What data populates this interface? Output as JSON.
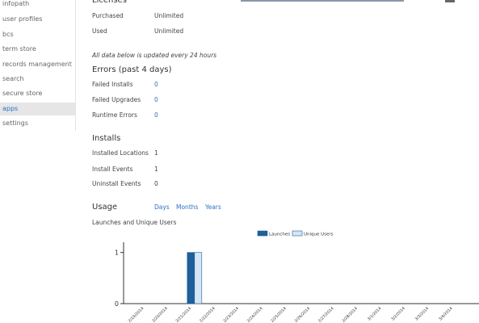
{
  "nav": {
    "items": [
      "infopath",
      "user profiles",
      "bcs",
      "term store",
      "records management",
      "search",
      "secure store",
      "apps",
      "settings"
    ],
    "selected": 7
  },
  "licenses": {
    "title": "Licenses",
    "rows": [
      [
        "Purchased",
        "Unlimited"
      ],
      [
        "Used",
        "Unlimited"
      ]
    ]
  },
  "note": "All data below is updated every 24 hours",
  "errors": {
    "title": "Errors (past 4 days)",
    "rows": [
      [
        "Failed Installs",
        0
      ],
      [
        "Failed Upgrades",
        0
      ],
      [
        "Runtime Errors",
        0
      ]
    ]
  },
  "installs": {
    "title": "Installs",
    "rows": [
      [
        "Installed Locations",
        1
      ],
      [
        "Install Events",
        1
      ],
      [
        "Uninstall Events",
        0
      ]
    ]
  },
  "usage": {
    "title": "Usage",
    "links": [
      "Days",
      "Months",
      "Years"
    ]
  },
  "chart_data": {
    "type": "bar",
    "title": "Launches and Unique Users",
    "categories": [
      "2/19/2014",
      "2/20/2014",
      "2/21/2014",
      "2/22/2014",
      "2/23/2014",
      "2/24/2014",
      "2/25/2014",
      "2/26/2014",
      "2/27/2014",
      "2/28/2014",
      "3/1/2014",
      "3/2/2014",
      "3/3/2014",
      "3/4/2014"
    ],
    "series": [
      {
        "name": "Launches",
        "color": "#1f5f9a",
        "values": [
          0,
          0,
          1,
          0,
          0,
          0,
          0,
          0,
          0,
          0,
          0,
          0,
          0,
          0
        ]
      },
      {
        "name": "Unique Users",
        "color": "#d6e6f5",
        "values": [
          0,
          0,
          1,
          0,
          0,
          0,
          0,
          0,
          0,
          0,
          0,
          0,
          0,
          0
        ]
      }
    ],
    "ylim": [
      0,
      1.2
    ],
    "yticks": [
      0,
      1
    ]
  }
}
